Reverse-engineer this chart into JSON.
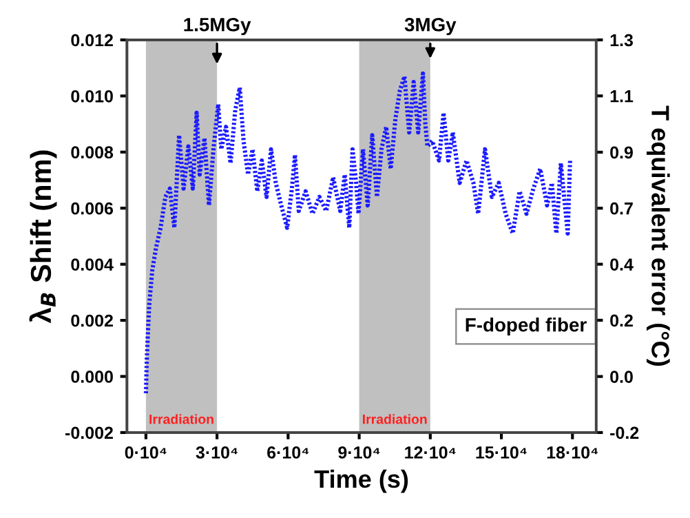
{
  "chart_data": {
    "type": "line",
    "xlabel": "Time (s)",
    "ylabel": "λ$_{B}$ Shift (nm)",
    "y2label": "T equivalent error (°C)",
    "x": [
      0,
      400,
      1350,
      2700,
      4300,
      6200,
      8200,
      10100,
      12000,
      14000,
      15900,
      17900,
      19800,
      21400,
      22700,
      24700,
      26600,
      28500,
      30500,
      31800,
      33800,
      35700,
      37700,
      39600,
      41200,
      43100,
      45000,
      47000,
      48900,
      50900,
      52800,
      54800,
      57100,
      59600,
      61600,
      62900,
      64500,
      67400,
      70300,
      73200,
      76100,
      79000,
      82000,
      83900,
      85800,
      87200,
      88700,
      89700,
      91600,
      93600,
      95500,
      97500,
      99400,
      101400,
      103300,
      105300,
      107200,
      109100,
      111100,
      113000,
      114900,
      116900,
      117900,
      118800,
      120800,
      123700,
      125600,
      127600,
      129500,
      132400,
      135300,
      138200,
      140200,
      143100,
      146000,
      148900,
      151800,
      154800,
      157700,
      160600,
      163500,
      166400,
      169300,
      171300,
      173200,
      175100,
      178000,
      179000
    ],
    "series": [
      {
        "color": "#1a1aff",
        "values": [
          -0.0006,
          0.0007,
          0.0025,
          0.0038,
          0.0046,
          0.0053,
          0.0064,
          0.0067,
          0.0053,
          0.0086,
          0.0067,
          0.0082,
          0.0067,
          0.0094,
          0.0072,
          0.0085,
          0.0061,
          0.0081,
          0.0097,
          0.0081,
          0.0089,
          0.0076,
          0.0095,
          0.0103,
          0.0084,
          0.0072,
          0.0081,
          0.0066,
          0.0077,
          0.0064,
          0.0081,
          0.0069,
          0.0061,
          0.0053,
          0.0067,
          0.0079,
          0.0059,
          0.0066,
          0.0058,
          0.0064,
          0.0059,
          0.0071,
          0.0059,
          0.0072,
          0.0053,
          0.0081,
          0.0069,
          0.0058,
          0.0081,
          0.0061,
          0.0086,
          0.0064,
          0.0081,
          0.0089,
          0.0074,
          0.0092,
          0.0102,
          0.0107,
          0.0087,
          0.0105,
          0.0087,
          0.0108,
          0.009,
          0.0082,
          0.0084,
          0.0077,
          0.0094,
          0.0077,
          0.0087,
          0.0069,
          0.0077,
          0.0069,
          0.0058,
          0.0081,
          0.0064,
          0.0069,
          0.0058,
          0.0051,
          0.0066,
          0.0058,
          0.0067,
          0.0074,
          0.0061,
          0.0069,
          0.0051,
          0.0076,
          0.0051,
          0.0077
        ]
      }
    ],
    "xlim": [
      -8000,
      190000
    ],
    "xticks": [
      {
        "value": 0,
        "label": "0·10⁴"
      },
      {
        "value": 30000,
        "label": "3·10⁴"
      },
      {
        "value": 60000,
        "label": "6·10⁴"
      },
      {
        "value": 90000,
        "label": "9·10⁴"
      },
      {
        "value": 120000,
        "label": "12·10⁴"
      },
      {
        "value": 150000,
        "label": "15·10⁴"
      },
      {
        "value": 180000,
        "label": "18·10⁴"
      }
    ],
    "ylim": [
      -0.002,
      0.012
    ],
    "yticks": [
      {
        "value": -0.002,
        "label": "-0.002"
      },
      {
        "value": 0,
        "label": "0.000"
      },
      {
        "value": 0.002,
        "label": "0.002"
      },
      {
        "value": 0.004,
        "label": "0.004"
      },
      {
        "value": 0.006,
        "label": "0.006"
      },
      {
        "value": 0.008,
        "label": "0.008"
      },
      {
        "value": 0.01,
        "label": "0.010"
      },
      {
        "value": 0.012,
        "label": "0.012"
      }
    ],
    "y2lim": [
      -0.2,
      1.3
    ],
    "y2ticks": [
      -0.2,
      {
        "value": 0.014,
        "label": "0.0"
      },
      {
        "value": 0.229,
        "label": "0.2"
      },
      {
        "value": 0.443,
        "label": "0.4"
      },
      {
        "value": 0.657,
        "label": "0.7"
      },
      {
        "value": 0.871,
        "label": "0.9"
      },
      {
        "value": 1.086,
        "label": "1.1"
      },
      1.3
    ],
    "bands": [
      {
        "axis": "x",
        "from": 0,
        "to": 30000,
        "label": "Irradiation",
        "color": "#c0c0c0"
      },
      {
        "axis": "x",
        "from": 90000,
        "to": 120000,
        "label": "Irradiation",
        "color": "#c0c0c0"
      }
    ],
    "annotations": [
      {
        "text": "1.5MGy",
        "x": 30000,
        "y": 0.011
      },
      {
        "text": "3MGy",
        "x": 120000,
        "y": 0.0112
      },
      "F-doped fiber"
    ],
    "line_style": "dotted",
    "marker": "none",
    "grid": false,
    "legend": false
  }
}
